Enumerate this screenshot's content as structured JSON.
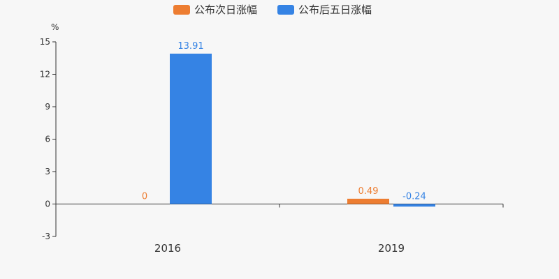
{
  "chart_data": {
    "type": "bar",
    "categories": [
      "2016",
      "2019"
    ],
    "series": [
      {
        "name": "公布次日涨幅",
        "values": [
          0,
          0.49
        ],
        "labels": [
          "0",
          "0.49"
        ],
        "color": "#ed7d31"
      },
      {
        "name": "公布后五日涨幅",
        "values": [
          13.91,
          -0.24
        ],
        "labels": [
          "13.91",
          "-0.24"
        ],
        "color": "#3583e4"
      }
    ],
    "y_unit": "%",
    "ylim": [
      -3,
      15
    ],
    "yticks": [
      -3,
      0,
      3,
      6,
      9,
      12,
      15
    ],
    "grid": false,
    "legend_position": "top-center"
  }
}
